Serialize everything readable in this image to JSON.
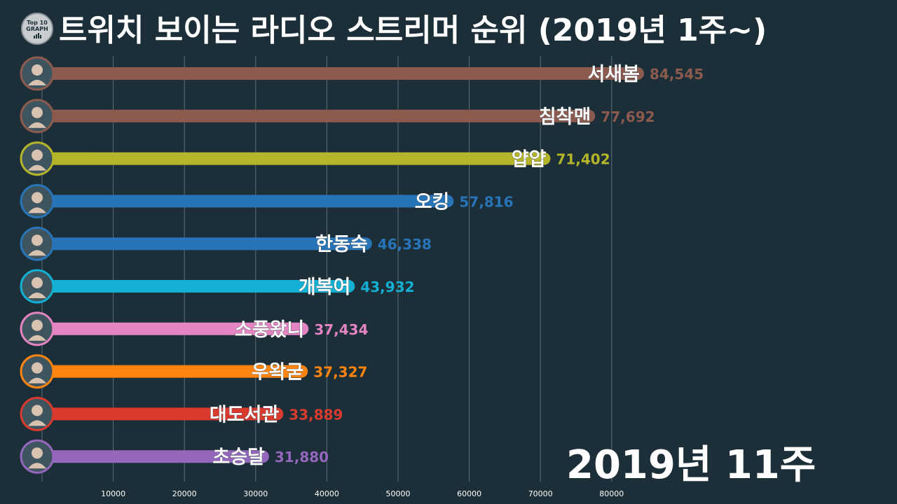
{
  "header": {
    "title": "트위치 보이는 라디오 스트리머 순위  (2019년 1주~)",
    "logo_line1": "Top 10",
    "logo_line2": "GRAPH"
  },
  "period_label": "2019년 11주",
  "chart_data": {
    "type": "bar",
    "orientation": "horizontal",
    "title": "트위치 보이는 라디오 스트리머 순위  (2019년 1주~)",
    "xlim": [
      0,
      87000
    ],
    "x_ticks": [
      10000,
      20000,
      30000,
      40000,
      50000,
      60000,
      70000,
      80000
    ],
    "grid": true,
    "categories": [
      "서새봄",
      "침착맨",
      "얍얍",
      "오킹",
      "한동숙",
      "개복어",
      "소풍왔니",
      "우왁굳",
      "대도서관",
      "초승달"
    ],
    "values": [
      84545,
      77692,
      71402,
      57816,
      46338,
      43932,
      37434,
      37327,
      33889,
      31880
    ],
    "value_labels": [
      "84,545",
      "77,692",
      "71,402",
      "57,816",
      "46,338",
      "43,932",
      "37,434",
      "37,327",
      "33,889",
      "31,880"
    ],
    "colors": [
      "#8c5a4e",
      "#8c5a4e",
      "#b5b52a",
      "#2874b8",
      "#2874b8",
      "#14b0d3",
      "#e584c2",
      "#ff8410",
      "#d93a2e",
      "#9467bd"
    ],
    "avatar_icons": [
      "avatar-seosaebom-icon",
      "avatar-chimchakman-icon",
      "avatar-yapyap-icon",
      "avatar-oking-icon",
      "avatar-handongsuk-icon",
      "avatar-gaebokeo-icon",
      "avatar-sopungwatni-icon",
      "avatar-woowakgood-icon",
      "avatar-daedoseogwan-icon",
      "avatar-choseungdal-icon"
    ]
  }
}
